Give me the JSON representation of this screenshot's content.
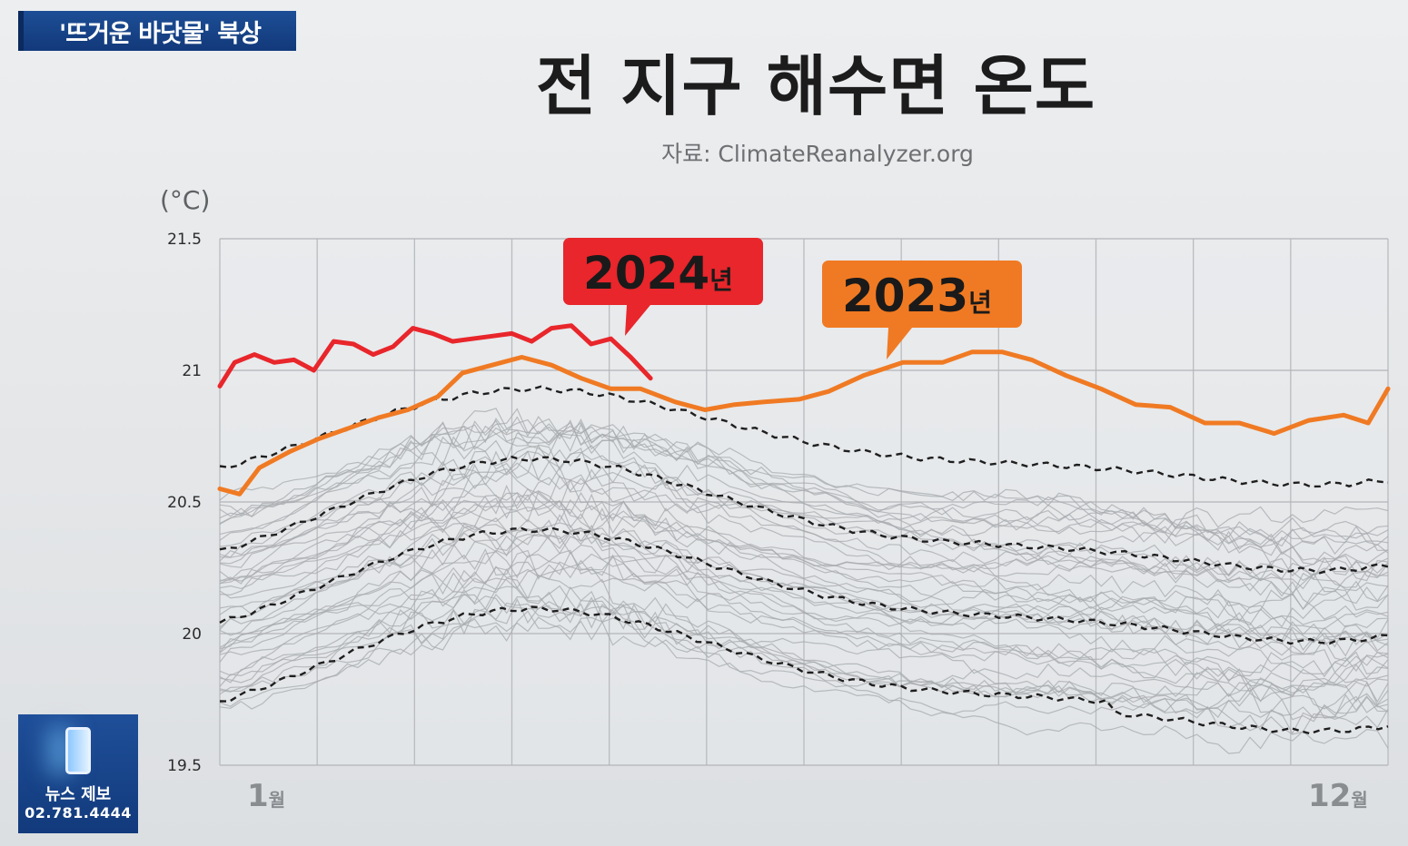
{
  "topic_badge": "'뜨거운 바닷물' 북상",
  "news_tip": {
    "label": "뉴스 제보",
    "phone": "02.781.4444"
  },
  "chart_data": {
    "type": "line",
    "title": "전 지구 해수면 온도",
    "subtitle": "자료: ClimateReanalyzer.org",
    "unit_label": "(°C)",
    "ylim": [
      19.5,
      21.5
    ],
    "y_ticks": [
      "21.5",
      "21",
      "20.5",
      "20",
      "19.5"
    ],
    "x_range": [
      1,
      12.8
    ],
    "x_labels": [
      {
        "value": 1,
        "num": "1",
        "suffix": "월"
      },
      {
        "value": 12.5,
        "num": "12",
        "suffix": "월"
      }
    ],
    "grid": true,
    "series": [
      {
        "name": "2024년",
        "num": "2024",
        "suffix": "년",
        "color": "#e8262b",
        "x": [
          1.0,
          1.15,
          1.35,
          1.55,
          1.75,
          1.95,
          2.15,
          2.35,
          2.55,
          2.75,
          2.95,
          3.15,
          3.35,
          3.55,
          3.75,
          3.95,
          4.15,
          4.35,
          4.55,
          4.75,
          4.95,
          5.15,
          5.35
        ],
        "values": [
          20.94,
          21.03,
          21.06,
          21.03,
          21.04,
          21.0,
          21.11,
          21.1,
          21.06,
          21.09,
          21.16,
          21.14,
          21.11,
          21.12,
          21.13,
          21.14,
          21.11,
          21.16,
          21.17,
          21.1,
          21.12,
          21.05,
          20.97
        ]
      },
      {
        "name": "2023년",
        "num": "2023",
        "suffix": "년",
        "color": "#f07a23",
        "x": [
          1.0,
          1.2,
          1.4,
          1.7,
          2.0,
          2.3,
          2.6,
          2.9,
          3.2,
          3.45,
          3.75,
          4.05,
          4.35,
          4.65,
          4.95,
          5.25,
          5.6,
          5.9,
          6.2,
          6.5,
          6.85,
          7.15,
          7.5,
          7.9,
          8.3,
          8.6,
          8.9,
          9.2,
          9.55,
          9.9,
          10.25,
          10.6,
          10.95,
          11.3,
          11.65,
          12.0,
          12.35,
          12.6,
          12.8
        ],
        "values": [
          20.55,
          20.53,
          20.63,
          20.69,
          20.74,
          20.78,
          20.82,
          20.85,
          20.9,
          20.99,
          21.02,
          21.05,
          21.02,
          20.97,
          20.93,
          20.93,
          20.88,
          20.85,
          20.87,
          20.88,
          20.89,
          20.92,
          20.98,
          21.03,
          21.03,
          21.07,
          21.07,
          21.04,
          20.98,
          20.93,
          20.87,
          20.86,
          20.8,
          20.8,
          20.76,
          20.81,
          20.83,
          20.8,
          20.93
        ]
      }
    ],
    "historical_color": "#a7a9ac",
    "reference_color": "#1e1e1e"
  }
}
